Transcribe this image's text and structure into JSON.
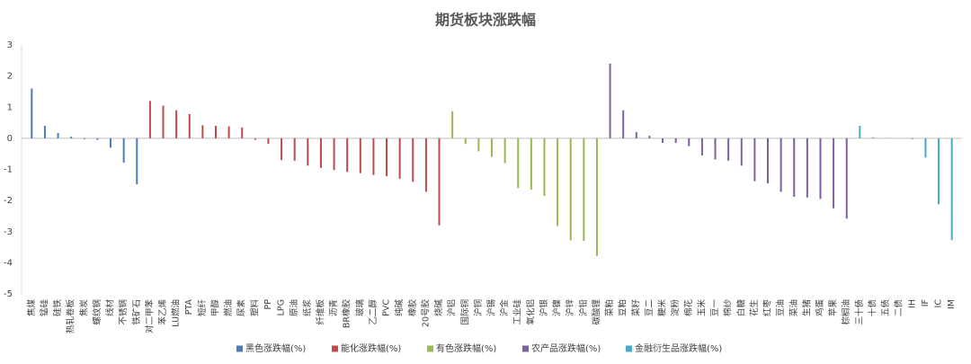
{
  "chart_data": {
    "type": "bar",
    "title": "期货板块涨跌幅",
    "categories": [
      "焦煤",
      "锰硅",
      "硅铁",
      "热轧卷板",
      "焦炭",
      "螺纹钢",
      "线材",
      "不锈钢",
      "铁矿石",
      "对二甲苯",
      "苯乙烯",
      "LU燃油",
      "PTA",
      "短纤",
      "甲醇",
      "燃油",
      "尿素",
      "塑料",
      "PP",
      "LPG",
      "原油",
      "纸浆",
      "纤维板",
      "沥青",
      "BR橡胶",
      "玻璃",
      "乙二醇",
      "PVC",
      "纯碱",
      "橡胶",
      "20号胶",
      "烧碱",
      "沪铝",
      "国际铜",
      "沪铜",
      "沪锡",
      "沪金",
      "工业硅",
      "氧化铝",
      "沪银",
      "沪镍",
      "沪锌",
      "沪铅",
      "碳酸锂",
      "菜粕",
      "豆粕",
      "菜籽",
      "豆二",
      "粳米",
      "淀粉",
      "棉花",
      "玉米",
      "豆一",
      "棉纱",
      "白糖",
      "花生",
      "红枣",
      "豆油",
      "菜油",
      "生猪",
      "鸡蛋",
      "苹果",
      "棕榈油",
      "三十债",
      "十债",
      "五债",
      "二债",
      "IH",
      "IF",
      "IC",
      "IM"
    ],
    "series": [
      {
        "name": "黑色涨跌幅(%)",
        "color": "#4a7ebb",
        "values": [
          1.6,
          0.4,
          0.17,
          0.05,
          -0.03,
          -0.05,
          -0.3,
          -0.78,
          -1.48,
          null,
          null,
          null,
          null,
          null,
          null,
          null,
          null,
          null,
          null,
          null,
          null,
          null,
          null,
          null,
          null,
          null,
          null,
          null,
          null,
          null,
          null,
          null,
          null,
          null,
          null,
          null,
          null,
          null,
          null,
          null,
          null,
          null,
          null,
          null,
          null,
          null,
          null,
          null,
          null,
          null,
          null,
          null,
          null,
          null,
          null,
          null,
          null,
          null,
          null,
          null,
          null,
          null,
          null,
          null,
          null,
          null,
          null,
          null,
          null,
          null,
          null
        ]
      },
      {
        "name": "能化涨跌幅(%)",
        "color": "#be4b48",
        "values": [
          null,
          null,
          null,
          null,
          null,
          null,
          null,
          null,
          null,
          1.2,
          1.05,
          0.9,
          0.78,
          0.42,
          0.4,
          0.38,
          0.35,
          -0.05,
          -0.18,
          -0.7,
          -0.72,
          -0.88,
          -0.95,
          -1.02,
          -1.08,
          -1.12,
          -1.18,
          -1.22,
          -1.3,
          -1.4,
          -1.72,
          -2.8,
          null,
          null,
          null,
          null,
          null,
          null,
          null,
          null,
          null,
          null,
          null,
          null,
          null,
          null,
          null,
          null,
          null,
          null,
          null,
          null,
          null,
          null,
          null,
          null,
          null,
          null,
          null,
          null,
          null,
          null,
          null,
          null,
          null,
          null,
          null,
          null,
          null,
          null,
          null
        ]
      },
      {
        "name": "有色涨跌幅(%)",
        "color": "#98b954",
        "values": [
          null,
          null,
          null,
          null,
          null,
          null,
          null,
          null,
          null,
          null,
          null,
          null,
          null,
          null,
          null,
          null,
          null,
          null,
          null,
          null,
          null,
          null,
          null,
          null,
          null,
          null,
          null,
          null,
          null,
          null,
          null,
          null,
          0.87,
          -0.18,
          -0.42,
          -0.6,
          -0.8,
          -1.6,
          -1.65,
          -1.85,
          -2.82,
          -3.28,
          -3.3,
          -3.78,
          null,
          null,
          null,
          null,
          null,
          null,
          null,
          null,
          null,
          null,
          null,
          null,
          null,
          null,
          null,
          null,
          null,
          null,
          null,
          null,
          null,
          null,
          null,
          null,
          null,
          null,
          null
        ]
      },
      {
        "name": "农产品涨跌幅(%)",
        "color": "#7d60a0",
        "values": [
          null,
          null,
          null,
          null,
          null,
          null,
          null,
          null,
          null,
          null,
          null,
          null,
          null,
          null,
          null,
          null,
          null,
          null,
          null,
          null,
          null,
          null,
          null,
          null,
          null,
          null,
          null,
          null,
          null,
          null,
          null,
          null,
          null,
          null,
          null,
          null,
          null,
          null,
          null,
          null,
          null,
          null,
          null,
          null,
          2.4,
          0.9,
          0.2,
          0.08,
          -0.15,
          -0.15,
          -0.25,
          -0.55,
          -0.68,
          -0.72,
          -0.88,
          -1.38,
          -1.45,
          -1.72,
          -1.88,
          -1.9,
          -1.95,
          -2.25,
          -2.58,
          null,
          null,
          null,
          null,
          null,
          null,
          null,
          null
        ]
      },
      {
        "name": "金融衍生品涨跌幅(%)",
        "color": "#46aac5",
        "values": [
          null,
          null,
          null,
          null,
          null,
          null,
          null,
          null,
          null,
          null,
          null,
          null,
          null,
          null,
          null,
          null,
          null,
          null,
          null,
          null,
          null,
          null,
          null,
          null,
          null,
          null,
          null,
          null,
          null,
          null,
          null,
          null,
          null,
          null,
          null,
          null,
          null,
          null,
          null,
          null,
          null,
          null,
          null,
          null,
          null,
          null,
          null,
          null,
          null,
          null,
          null,
          null,
          null,
          null,
          null,
          null,
          null,
          null,
          null,
          null,
          null,
          null,
          null,
          0.4,
          0.03,
          0.01,
          0.0,
          -0.03,
          -0.62,
          -2.12,
          -3.27
        ]
      }
    ],
    "ylim": [
      -5,
      3
    ],
    "yticks": [
      3,
      2,
      1,
      0,
      -1,
      -2,
      -3,
      -4,
      -5
    ],
    "grid": false,
    "legend": "bottom"
  }
}
